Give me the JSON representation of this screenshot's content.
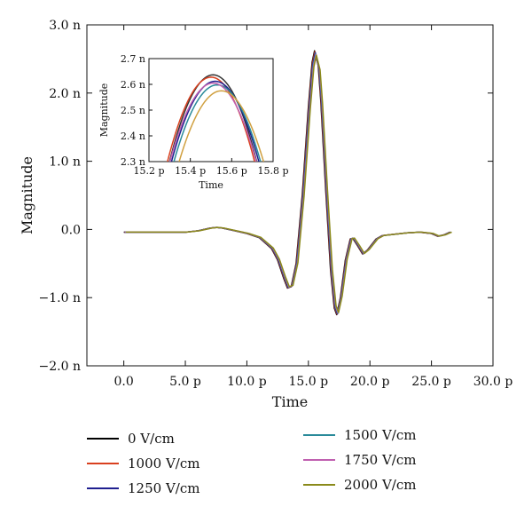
{
  "chart_data": [
    {
      "type": "line",
      "xlabel": "Time",
      "ylabel": "Magnitude",
      "xlim": [
        -3,
        30
      ],
      "ylim": [
        -2.0,
        3.0
      ],
      "x_ticks": [
        0,
        5,
        10,
        15,
        20,
        25,
        30
      ],
      "x_tick_labels": [
        "0.0",
        "5.0 p",
        "10.0 p",
        "15.0 p",
        "20.0 p",
        "25.0 p",
        "30.0 p"
      ],
      "y_ticks": [
        -2.0,
        -1.0,
        0.0,
        1.0,
        2.0,
        3.0
      ],
      "y_tick_labels": [
        "−2.0 n",
        "−1.0 n",
        "0.0",
        "1.0 n",
        "2.0 n",
        "3.0 n"
      ],
      "grid": false,
      "legend_position": "bottom",
      "x": [
        0,
        1,
        2,
        3,
        4,
        5,
        6,
        7,
        7.5,
        8,
        9,
        10,
        11,
        12,
        12.5,
        13,
        13.3,
        13.6,
        14,
        14.5,
        15,
        15.3,
        15.5,
        15.8,
        16,
        16.4,
        16.8,
        17.1,
        17.3,
        17.6,
        18,
        18.4,
        18.6,
        19,
        19.4,
        19.8,
        20.5,
        21,
        22,
        23,
        24,
        25,
        25.5,
        26,
        26.5
      ],
      "series": [
        {
          "name": "0 V/cm",
          "color": "#000000",
          "shift": 0.0,
          "scale": 1.0,
          "values": [
            -0.04,
            -0.04,
            -0.04,
            -0.04,
            -0.04,
            -0.04,
            -0.02,
            0.02,
            0.03,
            0.02,
            -0.02,
            -0.06,
            -0.12,
            -0.28,
            -0.45,
            -0.72,
            -0.86,
            -0.84,
            -0.5,
            0.5,
            1.8,
            2.45,
            2.62,
            2.4,
            1.9,
            0.6,
            -0.6,
            -1.15,
            -1.25,
            -1.0,
            -0.45,
            -0.14,
            -0.13,
            -0.24,
            -0.36,
            -0.3,
            -0.14,
            -0.09,
            -0.07,
            -0.05,
            -0.04,
            -0.06,
            -0.1,
            -0.08,
            -0.04
          ]
        },
        {
          "name": "1000 V/cm",
          "color": "#d9401f",
          "shift": 0.03,
          "scale": 0.995,
          "values": [
            -0.04,
            -0.04,
            -0.04,
            -0.04,
            -0.04,
            -0.04,
            -0.02,
            0.02,
            0.03,
            0.02,
            -0.02,
            -0.06,
            -0.12,
            -0.28,
            -0.45,
            -0.72,
            -0.86,
            -0.84,
            -0.5,
            0.5,
            1.8,
            2.45,
            2.62,
            2.4,
            1.9,
            0.6,
            -0.6,
            -1.15,
            -1.25,
            -1.0,
            -0.45,
            -0.14,
            -0.13,
            -0.24,
            -0.36,
            -0.3,
            -0.14,
            -0.09,
            -0.07,
            -0.05,
            -0.04,
            -0.06,
            -0.1,
            -0.08,
            -0.04
          ]
        },
        {
          "name": "1250 V/cm",
          "color": "#1f1f8f",
          "shift": 0.06,
          "scale": 0.99,
          "values": [
            -0.04,
            -0.04,
            -0.04,
            -0.04,
            -0.04,
            -0.04,
            -0.02,
            0.02,
            0.03,
            0.02,
            -0.02,
            -0.06,
            -0.12,
            -0.28,
            -0.45,
            -0.72,
            -0.86,
            -0.84,
            -0.5,
            0.5,
            1.8,
            2.45,
            2.62,
            2.4,
            1.9,
            0.6,
            -0.6,
            -1.15,
            -1.25,
            -1.0,
            -0.45,
            -0.14,
            -0.13,
            -0.24,
            -0.36,
            -0.3,
            -0.14,
            -0.09,
            -0.07,
            -0.05,
            -0.04,
            -0.06,
            -0.1,
            -0.08,
            -0.04
          ]
        },
        {
          "name": "1500 V/cm",
          "color": "#2a8a9a",
          "shift": 0.09,
          "scale": 0.985,
          "values": [
            -0.04,
            -0.04,
            -0.04,
            -0.04,
            -0.04,
            -0.04,
            -0.02,
            0.02,
            0.03,
            0.02,
            -0.02,
            -0.06,
            -0.12,
            -0.28,
            -0.45,
            -0.72,
            -0.86,
            -0.84,
            -0.5,
            0.5,
            1.8,
            2.45,
            2.62,
            2.4,
            1.9,
            0.6,
            -0.6,
            -1.15,
            -1.25,
            -1.0,
            -0.45,
            -0.14,
            -0.13,
            -0.24,
            -0.36,
            -0.3,
            -0.14,
            -0.09,
            -0.07,
            -0.05,
            -0.04,
            -0.06,
            -0.1,
            -0.08,
            -0.04
          ]
        },
        {
          "name": "1750 V/cm",
          "color": "#c060b0",
          "shift": 0.12,
          "scale": 0.98,
          "values": [
            -0.04,
            -0.04,
            -0.04,
            -0.04,
            -0.04,
            -0.04,
            -0.02,
            0.02,
            0.03,
            0.02,
            -0.02,
            -0.06,
            -0.12,
            -0.28,
            -0.45,
            -0.72,
            -0.86,
            -0.84,
            -0.5,
            0.5,
            1.8,
            2.45,
            2.62,
            2.4,
            1.9,
            0.6,
            -0.6,
            -1.15,
            -1.25,
            -1.0,
            -0.45,
            -0.14,
            -0.13,
            -0.24,
            -0.36,
            -0.3,
            -0.14,
            -0.09,
            -0.07,
            -0.05,
            -0.04,
            -0.06,
            -0.1,
            -0.08,
            -0.04
          ]
        },
        {
          "name": "2000 V/cm",
          "color": "#8a8a1a",
          "shift": 0.15,
          "scale": 0.975,
          "values": [
            -0.04,
            -0.04,
            -0.04,
            -0.04,
            -0.04,
            -0.04,
            -0.02,
            0.02,
            0.03,
            0.02,
            -0.02,
            -0.06,
            -0.12,
            -0.28,
            -0.45,
            -0.72,
            -0.86,
            -0.84,
            -0.5,
            0.5,
            1.8,
            2.45,
            2.62,
            2.4,
            1.9,
            0.6,
            -0.6,
            -1.15,
            -1.25,
            -1.0,
            -0.45,
            -0.14,
            -0.13,
            -0.24,
            -0.36,
            -0.3,
            -0.14,
            -0.09,
            -0.07,
            -0.05,
            -0.04,
            -0.06,
            -0.1,
            -0.08,
            -0.04
          ]
        }
      ]
    },
    {
      "type": "line",
      "role": "inset",
      "xlabel": "Time",
      "ylabel": "Magnitude",
      "xlim": [
        15.2,
        15.8
      ],
      "ylim": [
        2.3,
        2.7
      ],
      "x_ticks": [
        15.2,
        15.4,
        15.6,
        15.8
      ],
      "x_tick_labels": [
        "15.2 p",
        "15.4 p",
        "15.6 p",
        "15.8 p"
      ],
      "y_ticks": [
        2.3,
        2.4,
        2.5,
        2.6,
        2.7
      ],
      "y_tick_labels": [
        "2.3 n",
        "2.4 n",
        "2.5 n",
        "2.6 n",
        "2.7 n"
      ],
      "grid": false,
      "series": [
        {
          "name": "0 V/cm",
          "color": "#333333",
          "peak_x": 15.51,
          "peak_y": 2.637,
          "curvature": 7.6
        },
        {
          "name": "1000 V/cm",
          "color": "#d9401f",
          "peak_x": 15.5,
          "peak_y": 2.628,
          "curvature": 7.4
        },
        {
          "name": "1250 V/cm",
          "color": "#1f1f8f",
          "peak_x": 15.52,
          "peak_y": 2.612,
          "curvature": 7.0
        },
        {
          "name": "1500 V/cm",
          "color": "#2a8a9a",
          "peak_x": 15.53,
          "peak_y": 2.598,
          "curvature": 6.8
        },
        {
          "name": "1750 V/cm",
          "color": "#c060b0",
          "peak_x": 15.51,
          "peak_y": 2.605,
          "curvature": 7.0
        },
        {
          "name": "2000 V/cm",
          "color": "#d0a040",
          "peak_x": 15.55,
          "peak_y": 2.575,
          "curvature": 6.6
        }
      ]
    }
  ]
}
